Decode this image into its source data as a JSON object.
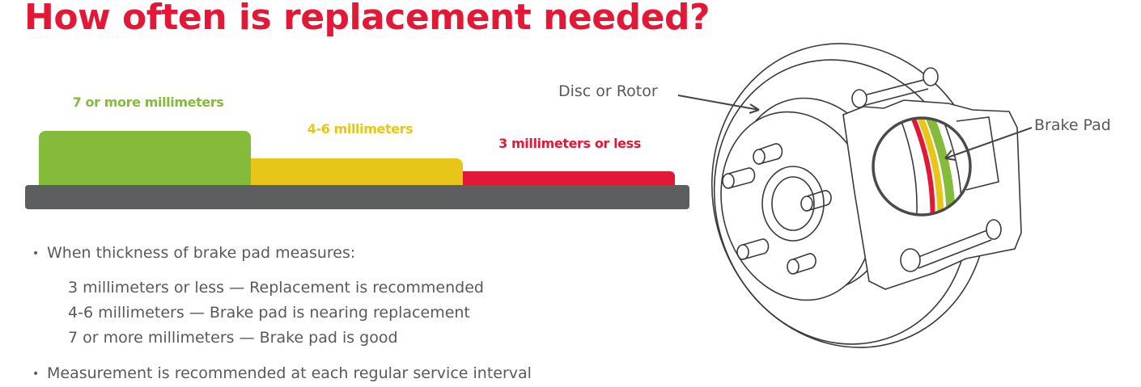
{
  "title": "How often is replacement needed?",
  "levels": [
    {
      "label": "7 or more millimeters",
      "color": "#84bb3b"
    },
    {
      "label": "4-6 millimeters",
      "color": "#e8c619"
    },
    {
      "label": "3 millimeters or less",
      "color": "#e31837"
    }
  ],
  "base_color": "#5d5e60",
  "bullets": {
    "first": "When thickness of brake pad measures:",
    "items": [
      "3 millimeters or less — Replacement is recommended",
      "4-6 millimeters — Brake pad is nearing replacement",
      "7 or more millimeters — Brake pad is good"
    ],
    "second": "Measurement is recommended at each regular service interval"
  },
  "diagram": {
    "disc_label": "Disc or Rotor",
    "pad_label": "Brake Pad"
  }
}
